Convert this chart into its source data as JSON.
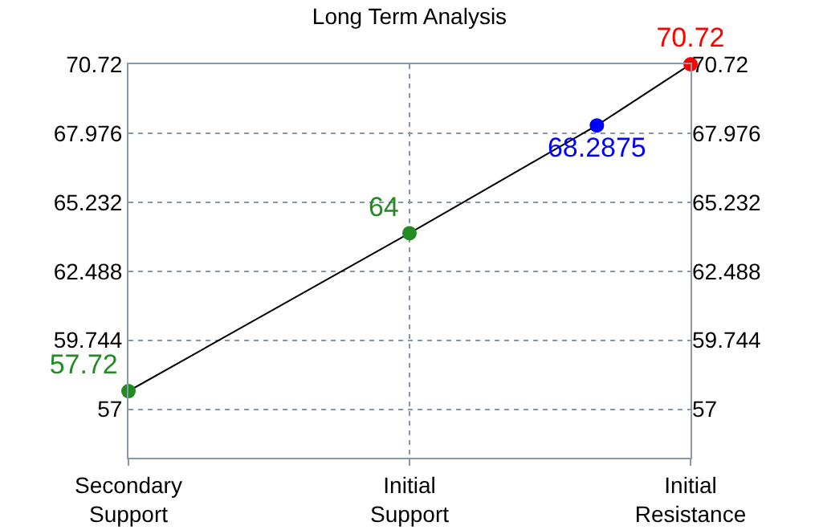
{
  "chart_data": {
    "type": "line",
    "title": "Long Term Analysis",
    "categories": [
      "Secondary Support",
      null,
      null,
      "Initial Support",
      null,
      null,
      "Initial Resistance"
    ],
    "series": [
      {
        "color": "#000000",
        "colors": [
          "#228b22",
          null,
          null,
          "#228b22",
          null,
          "#0000ff",
          "#ff0000"
        ],
        "values": [
          57.72,
          null,
          null,
          64,
          null,
          68.2875,
          70.72
        ]
      }
    ],
    "ylim": [
      55.07,
      70.72
    ],
    "yticks": [
      57,
      59.744,
      62.488,
      65.232,
      67.976,
      70.72
    ],
    "y2lim": [
      55.07,
      70.72
    ],
    "y2ticks": [
      57,
      59.744,
      62.488,
      65.232,
      67.976,
      70.72
    ],
    "grid": true,
    "marker": "circle",
    "line_style": "solid",
    "data_labels": true
  }
}
